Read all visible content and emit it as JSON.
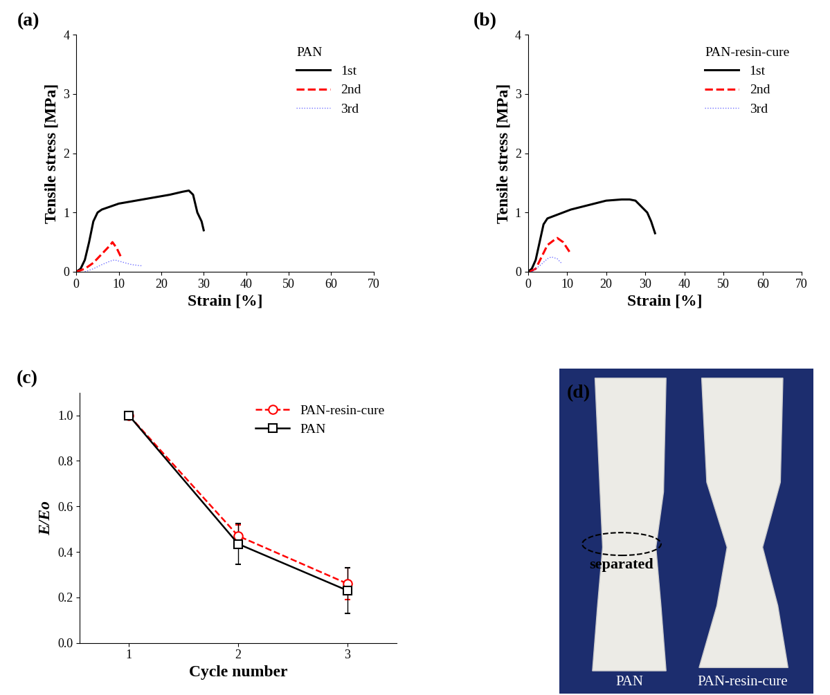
{
  "chart_data": [
    {
      "type": "line",
      "title": "(a)",
      "x_label": "Strain [%]",
      "y_label": "Tensile stress [MPa]",
      "legend_title": "PAN",
      "legend": "upper right",
      "xlim": [
        0,
        70
      ],
      "xticks": [
        0,
        10,
        20,
        30,
        40,
        50,
        60,
        70
      ],
      "ylim": [
        0,
        4
      ],
      "yticks": [
        0,
        1,
        2,
        3,
        4
      ],
      "series": [
        {
          "name": "1st",
          "color": "#000000",
          "line_style": "solid",
          "x": [
            0,
            1,
            2,
            3,
            4,
            5,
            6,
            8,
            10,
            14,
            18,
            22,
            25,
            26.5,
            27.5,
            28.5,
            29.5,
            30
          ],
          "values": [
            0,
            0.05,
            0.2,
            0.5,
            0.85,
            1.0,
            1.05,
            1.1,
            1.15,
            1.2,
            1.25,
            1.3,
            1.35,
            1.37,
            1.3,
            1.0,
            0.85,
            0.7
          ]
        },
        {
          "name": "2nd",
          "color": "#ff0000",
          "line_style": "dashed",
          "x": [
            0,
            2,
            4,
            6,
            8,
            8.5,
            9.5,
            10.5
          ],
          "values": [
            0,
            0.05,
            0.15,
            0.3,
            0.45,
            0.5,
            0.4,
            0.25
          ]
        },
        {
          "name": "3rd",
          "color": "#6f6fff",
          "line_style": "dotted",
          "x": [
            2,
            4,
            6,
            8,
            9,
            11,
            13,
            15.5
          ],
          "values": [
            0,
            0.05,
            0.12,
            0.18,
            0.2,
            0.16,
            0.12,
            0.1
          ]
        }
      ]
    },
    {
      "type": "line",
      "title": "(b)",
      "x_label": "Strain [%]",
      "y_label": "Tensile stress [MPa]",
      "legend_title": "PAN-resin-cure",
      "legend": "upper right",
      "xlim": [
        0,
        70
      ],
      "xticks": [
        0,
        10,
        20,
        30,
        40,
        50,
        60,
        70
      ],
      "ylim": [
        0,
        4
      ],
      "yticks": [
        0,
        1,
        2,
        3,
        4
      ],
      "series": [
        {
          "name": "1st",
          "color": "#000000",
          "line_style": "solid",
          "x": [
            0,
            1,
            2,
            3,
            4,
            5,
            7,
            9,
            11,
            14,
            17,
            20,
            24,
            26,
            27.5,
            29,
            30.5,
            31.5,
            32.5
          ],
          "values": [
            0,
            0.05,
            0.2,
            0.5,
            0.8,
            0.9,
            0.95,
            1.0,
            1.05,
            1.1,
            1.15,
            1.2,
            1.22,
            1.22,
            1.2,
            1.1,
            1.0,
            0.85,
            0.65
          ]
        },
        {
          "name": "2nd",
          "color": "#ff0000",
          "line_style": "dashed",
          "x": [
            0.5,
            2,
            3.5,
            5,
            7,
            7.5,
            9,
            10,
            11
          ],
          "values": [
            0,
            0.05,
            0.25,
            0.45,
            0.55,
            0.57,
            0.5,
            0.4,
            0.3
          ]
        },
        {
          "name": "3rd",
          "color": "#6f6fff",
          "line_style": "dotted",
          "x": [
            1,
            3,
            5,
            6,
            7.5,
            8.5
          ],
          "values": [
            0,
            0.1,
            0.22,
            0.25,
            0.22,
            0.15
          ]
        }
      ]
    },
    {
      "type": "line",
      "title": "(c)",
      "x_label": "Cycle number",
      "y_label": "E/Eo",
      "legend": "upper right",
      "xlim": [
        0.55,
        3.45
      ],
      "xticks": [
        1,
        2,
        3
      ],
      "ylim": [
        0,
        1.1
      ],
      "yticks": [
        {
          "value": 0,
          "label": "0.0"
        },
        {
          "value": 0.2,
          "label": "0.2"
        },
        {
          "value": 0.4,
          "label": "0.4"
        },
        {
          "value": 0.6,
          "label": "0.6"
        },
        {
          "value": 0.8,
          "label": "0.8"
        },
        {
          "value": 1.0,
          "label": "1.0"
        }
      ],
      "series": [
        {
          "name": "PAN-resin-cure",
          "color": "#ff0000",
          "line_style": "dashed",
          "marker": "circle",
          "x": [
            1,
            2,
            3
          ],
          "values": [
            1.0,
            0.47,
            0.26
          ],
          "errors": [
            0,
            0.05,
            0.07
          ]
        },
        {
          "name": "PAN",
          "color": "#000000",
          "line_style": "solid",
          "marker": "square",
          "x": [
            1,
            2,
            3
          ],
          "values": [
            1.0,
            0.435,
            0.23
          ],
          "errors": [
            0,
            0.09,
            0.1
          ]
        }
      ]
    }
  ],
  "image_panel": {
    "label": "(d)",
    "annotation": "separated",
    "captions": [
      "PAN",
      "PAN-resin-cure"
    ]
  }
}
